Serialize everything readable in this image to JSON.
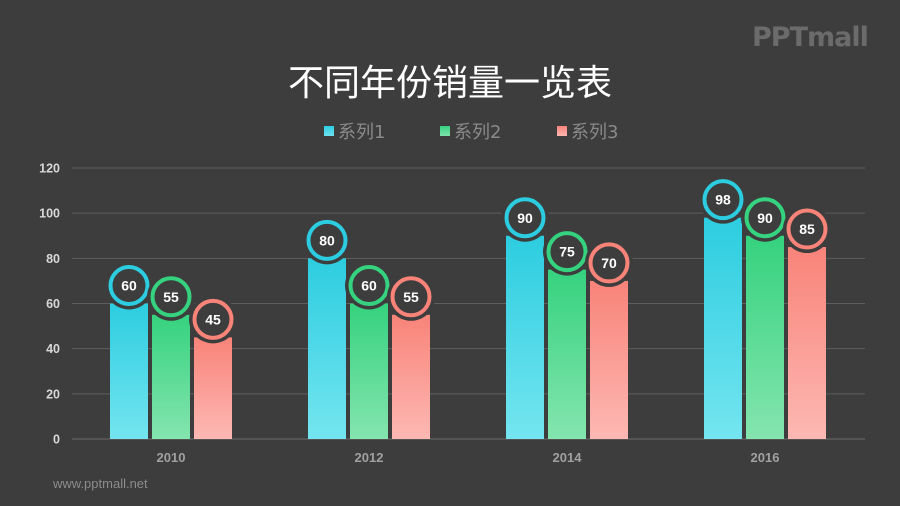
{
  "logo": "PPTmall",
  "footer": "www.pptmall.net",
  "colors": {
    "background": "#3d3d3d",
    "grid": "#5e5e5e",
    "series1": "#2ccde0",
    "series2": "#35d27f",
    "series3": "#f88379"
  },
  "chart_data": {
    "type": "bar",
    "title": "不同年份销量一览表",
    "categories": [
      "2010",
      "2012",
      "2014",
      "2016"
    ],
    "series": [
      {
        "name": "系列1",
        "values": [
          60,
          80,
          90,
          98
        ]
      },
      {
        "name": "系列2",
        "values": [
          55,
          60,
          75,
          90
        ]
      },
      {
        "name": "系列3",
        "values": [
          45,
          55,
          70,
          85
        ]
      }
    ],
    "yticks": [
      "0",
      "20",
      "40",
      "60",
      "80",
      "100",
      "120"
    ],
    "ylim": [
      0,
      120
    ],
    "xlabel": "",
    "ylabel": "",
    "grid": true,
    "legend_position": "top",
    "data_labels": true
  }
}
